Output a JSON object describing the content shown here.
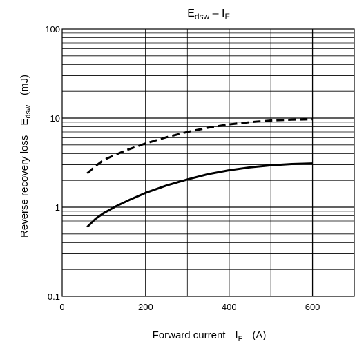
{
  "chart_data": {
    "type": "line",
    "title": "E",
    "title_sub": "dsw",
    "title_tail": " – I",
    "title_sub2": "F",
    "xlabel": "Forward current",
    "xlabel_symbol": "I",
    "xlabel_sub": "F",
    "xlabel_unit": "(A)",
    "ylabel": "Reverse recovery loss",
    "ylabel_symbol": "E",
    "ylabel_sub": "dsw",
    "ylabel_unit": "(mJ)",
    "x_scale": "linear",
    "y_scale": "log",
    "xlim": [
      0,
      700
    ],
    "ylim": [
      0.1,
      100
    ],
    "x_ticks": [
      0,
      200,
      400,
      600
    ],
    "x_tick_labels": [
      "0",
      "200",
      "400",
      "600"
    ],
    "y_ticks": [
      0.1,
      1,
      10,
      100
    ],
    "y_tick_labels": [
      "0.1",
      "1",
      "10",
      "100"
    ],
    "grid": true,
    "series": [
      {
        "style": "dashed",
        "color": "#000000",
        "x": [
          60,
          80,
          100,
          150,
          200,
          250,
          300,
          350,
          400,
          450,
          500,
          550,
          600
        ],
        "y": [
          2.4,
          2.9,
          3.4,
          4.3,
          5.2,
          6.1,
          7.0,
          7.8,
          8.5,
          9.0,
          9.4,
          9.6,
          9.7
        ]
      },
      {
        "style": "solid",
        "color": "#000000",
        "x": [
          60,
          80,
          100,
          130,
          160,
          200,
          250,
          300,
          350,
          400,
          450,
          500,
          550,
          600
        ],
        "y": [
          0.6,
          0.74,
          0.86,
          1.03,
          1.2,
          1.45,
          1.75,
          2.05,
          2.35,
          2.6,
          2.8,
          2.95,
          3.05,
          3.1
        ]
      }
    ]
  }
}
